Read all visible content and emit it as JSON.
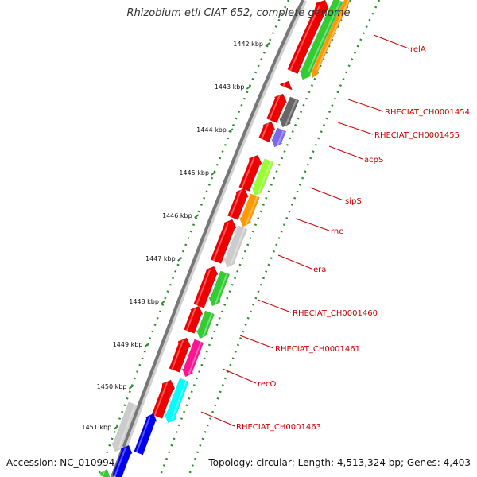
{
  "title": "Rhizobium etli CIAT 652, complete genome",
  "accession_label": "Accession: NC_010994",
  "summary": "Topology: circular; Length: 4,513,324 bp; Genes: 4,403",
  "colors": {
    "backbone": "#777777",
    "forward_cds": "#ee0000",
    "tick_dots": "#2e8b2e",
    "label": "#cc0000"
  },
  "ticks": [
    "1442 kbp",
    "1443 kbp",
    "1444 kbp",
    "1445 kbp",
    "1446 kbp",
    "1447 kbp",
    "1448 kbp",
    "1449 kbp",
    "1450 kbp",
    "1451 kbp"
  ],
  "genes": [
    {
      "label": "relA",
      "color": "#33cc33",
      "second_color": "#ff9900"
    },
    {
      "label": "RHECIAT_CH0001454",
      "color": "#666666"
    },
    {
      "label": "RHECIAT_CH0001455",
      "color": "#7b68ee"
    },
    {
      "label": "acpS",
      "color": "#99ff33"
    },
    {
      "label": "sipS",
      "color": "#ff9900"
    },
    {
      "label": "rnc",
      "color": "#cccccc"
    },
    {
      "label": "era",
      "color": "#33cc33"
    },
    {
      "label": "RHECIAT_CH0001460",
      "color": "#33cc33"
    },
    {
      "label": "RHECIAT_CH0001461",
      "color": "#ff1493"
    },
    {
      "label": "recO",
      "color": "#00ffff"
    },
    {
      "label": "RHECIAT_CH0001463",
      "color": "#cccccc"
    }
  ]
}
